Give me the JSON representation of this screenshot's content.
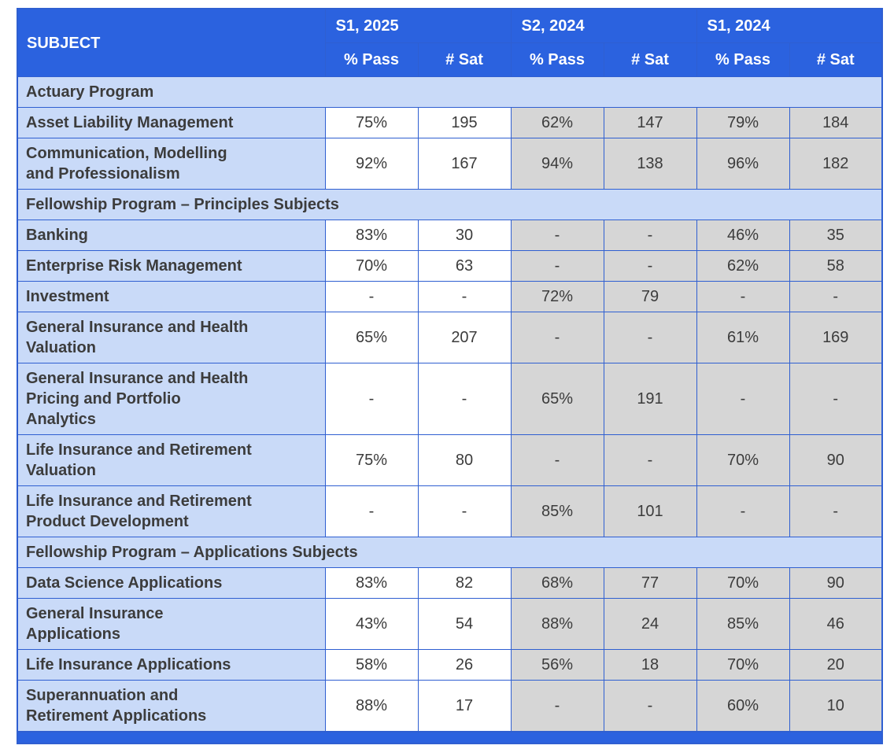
{
  "colors": {
    "header_blue": "#2b62df",
    "section_bg": "#c9daf8",
    "gray_col": "#d6d6d6",
    "border_blue": "#2f5fd1",
    "text_dark": "#3c3c3c",
    "header_text": "#ffffff"
  },
  "table": {
    "header": {
      "subject_label": "SUBJECT",
      "periods": [
        "S1, 2025",
        "S2, 2024",
        "S1, 2024"
      ],
      "sub_headers": [
        "% Pass",
        "# Sat"
      ]
    },
    "sections": [
      {
        "title": "Actuary Program",
        "rows": [
          {
            "subject": "Asset Liability Management",
            "values": [
              "75%",
              "195",
              "62%",
              "147",
              "79%",
              "184"
            ]
          },
          {
            "subject": "Communication, Modelling\nand Professionalism",
            "values": [
              "92%",
              "167",
              "94%",
              "138",
              "96%",
              "182"
            ]
          }
        ]
      },
      {
        "title": "Fellowship Program – Principles Subjects",
        "rows": [
          {
            "subject": "Banking",
            "values": [
              "83%",
              "30",
              "-",
              "-",
              "46%",
              "35"
            ]
          },
          {
            "subject": "Enterprise Risk Management",
            "values": [
              "70%",
              "63",
              "-",
              "-",
              "62%",
              "58"
            ]
          },
          {
            "subject": "Investment",
            "values": [
              "-",
              "-",
              "72%",
              "79",
              "-",
              "-"
            ]
          },
          {
            "subject": "General Insurance and Health\nValuation",
            "values": [
              "65%",
              "207",
              "-",
              "-",
              "61%",
              "169"
            ]
          },
          {
            "subject": "General Insurance and Health\nPricing and Portfolio\nAnalytics",
            "values": [
              "-",
              "-",
              "65%",
              "191",
              "-",
              "-"
            ]
          },
          {
            "subject": "Life Insurance and Retirement\nValuation",
            "values": [
              "75%",
              "80",
              "-",
              "-",
              "70%",
              "90"
            ]
          },
          {
            "subject": "Life Insurance and Retirement\nProduct Development",
            "values": [
              "-",
              "-",
              "85%",
              "101",
              "-",
              "-"
            ]
          }
        ]
      },
      {
        "title": "Fellowship Program – Applications Subjects",
        "rows": [
          {
            "subject": "Data Science Applications",
            "values": [
              "83%",
              "82",
              "68%",
              "77",
              "70%",
              "90"
            ]
          },
          {
            "subject": "General Insurance\nApplications",
            "values": [
              "43%",
              "54",
              "88%",
              "24",
              "85%",
              "46"
            ]
          },
          {
            "subject": "Life Insurance Applications",
            "values": [
              "58%",
              "26",
              "56%",
              "18",
              "70%",
              "20"
            ]
          },
          {
            "subject": "Superannuation and\nRetirement Applications",
            "values": [
              "88%",
              "17",
              "-",
              "-",
              "60%",
              "10"
            ]
          }
        ]
      }
    ]
  }
}
